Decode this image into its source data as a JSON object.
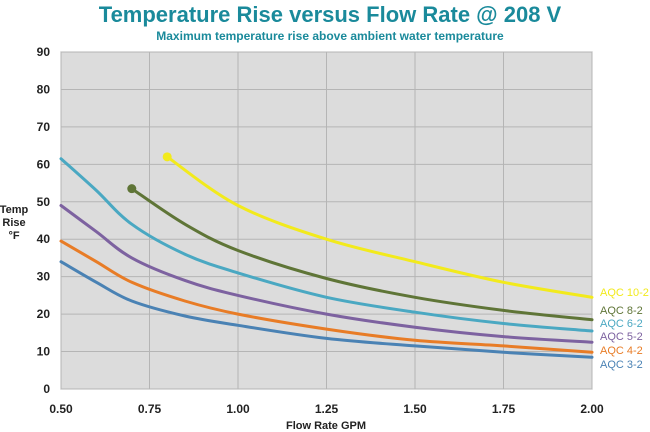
{
  "chart_data": {
    "type": "line",
    "title": "Temperature Rise versus Flow Rate @ 208 V",
    "subtitle": "Maximum temperature rise above ambient water temperature",
    "xlabel": "Flow Rate GPM",
    "ylabel": [
      "Temp",
      "Rise",
      "°F"
    ],
    "xlim": [
      0.5,
      2.0
    ],
    "ylim": [
      0,
      90
    ],
    "x_ticks": [
      0.5,
      0.75,
      1.0,
      1.25,
      1.5,
      1.75,
      2.0
    ],
    "x_tick_labels": [
      "0.50",
      "0.75",
      "1.00",
      "1.25",
      "1.50",
      "1.75",
      "2.00"
    ],
    "y_ticks": [
      0,
      10,
      20,
      30,
      40,
      50,
      60,
      70,
      80,
      90
    ],
    "y_tick_labels": [
      "0",
      "10",
      "20",
      "30",
      "40",
      "50",
      "60",
      "70",
      "80",
      "90"
    ],
    "grid": true,
    "series": [
      {
        "name": "AQC 10-2",
        "color": "#f2ea1c",
        "start_marker": true,
        "x": [
          0.8,
          1.0,
          1.25,
          1.5,
          1.75,
          2.0
        ],
        "y": [
          62,
          49,
          40,
          34,
          28.5,
          24.5
        ]
      },
      {
        "name": "AQC 8-2",
        "color": "#5f7537",
        "start_marker": true,
        "x": [
          0.7,
          0.85,
          1.0,
          1.25,
          1.5,
          1.75,
          2.0
        ],
        "y": [
          53.5,
          44,
          37,
          29.5,
          24.5,
          21,
          18.5
        ]
      },
      {
        "name": "AQC 6-2",
        "color": "#4aa8c2",
        "start_marker": false,
        "x": [
          0.5,
          0.6,
          0.7,
          0.85,
          1.0,
          1.25,
          1.5,
          1.75,
          2.0
        ],
        "y": [
          61.5,
          53,
          44,
          36,
          31,
          24.5,
          20.5,
          17.5,
          15.5
        ]
      },
      {
        "name": "AQC 5-2",
        "color": "#7d62a0",
        "start_marker": false,
        "x": [
          0.5,
          0.6,
          0.7,
          0.85,
          1.0,
          1.25,
          1.5,
          1.75,
          2.0
        ],
        "y": [
          49,
          42,
          35,
          29,
          25,
          20,
          16.5,
          14,
          12.5
        ]
      },
      {
        "name": "AQC 4-2",
        "color": "#e87c26",
        "start_marker": false,
        "x": [
          0.5,
          0.6,
          0.7,
          0.85,
          1.0,
          1.25,
          1.5,
          1.75,
          2.0
        ],
        "y": [
          39.5,
          34,
          28.5,
          23.5,
          20,
          16,
          13,
          11.5,
          9.8
        ]
      },
      {
        "name": "AQC 3-2",
        "color": "#4a82b4",
        "start_marker": false,
        "x": [
          0.5,
          0.6,
          0.7,
          0.85,
          1.0,
          1.25,
          1.5,
          1.75,
          2.0
        ],
        "y": [
          34,
          28.5,
          23.5,
          19.5,
          17,
          13.5,
          11.5,
          9.8,
          8.5
        ]
      }
    ],
    "legend": [
      {
        "label": "AQC 10-2",
        "color": "#f2ea1c"
      },
      {
        "label": "AQC 8-2",
        "color": "#5f7537"
      },
      {
        "label": "AQC 6-2",
        "color": "#4aa8c2"
      },
      {
        "label": "AQC 5-2",
        "color": "#7d62a0"
      },
      {
        "label": "AQC 4-2",
        "color": "#e87c26"
      },
      {
        "label": "AQC 3-2",
        "color": "#4a82b4"
      }
    ],
    "legend_position": "right"
  }
}
